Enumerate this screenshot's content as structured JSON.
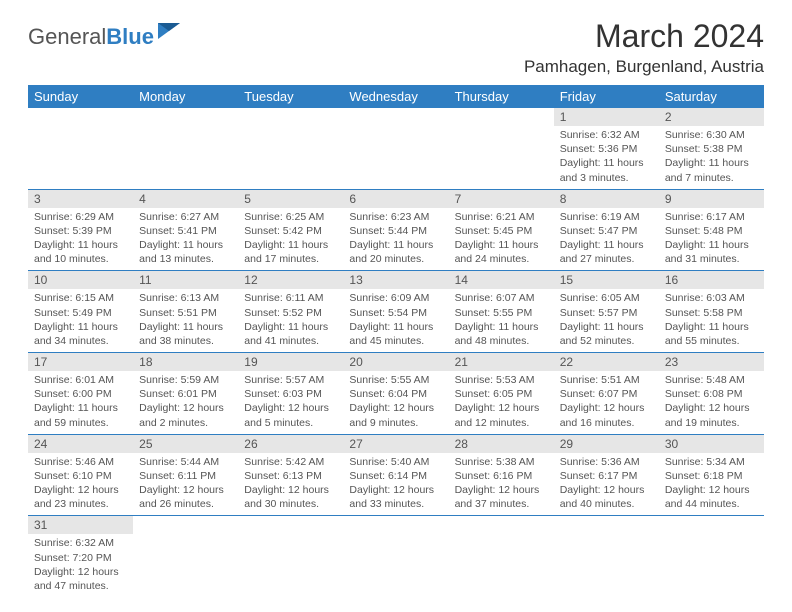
{
  "logo": {
    "text1": "General",
    "text2": "Blue"
  },
  "title": "March 2024",
  "location": "Pamhagen, Burgenland, Austria",
  "colors": {
    "header_bg": "#2f7ec2",
    "header_text": "#ffffff",
    "daynum_bg": "#e6e6e6",
    "body_text": "#555555",
    "rule": "#2f7ec2",
    "page_bg": "#ffffff"
  },
  "typography": {
    "title_fontsize": 32,
    "location_fontsize": 17,
    "weekday_fontsize": 13,
    "daynum_fontsize": 12,
    "body_fontsize": 10.5
  },
  "weekdays": [
    "Sunday",
    "Monday",
    "Tuesday",
    "Wednesday",
    "Thursday",
    "Friday",
    "Saturday"
  ],
  "weeks": [
    [
      null,
      null,
      null,
      null,
      null,
      {
        "n": "1",
        "sr": "Sunrise: 6:32 AM",
        "ss": "Sunset: 5:36 PM",
        "d1": "Daylight: 11 hours",
        "d2": "and 3 minutes."
      },
      {
        "n": "2",
        "sr": "Sunrise: 6:30 AM",
        "ss": "Sunset: 5:38 PM",
        "d1": "Daylight: 11 hours",
        "d2": "and 7 minutes."
      }
    ],
    [
      {
        "n": "3",
        "sr": "Sunrise: 6:29 AM",
        "ss": "Sunset: 5:39 PM",
        "d1": "Daylight: 11 hours",
        "d2": "and 10 minutes."
      },
      {
        "n": "4",
        "sr": "Sunrise: 6:27 AM",
        "ss": "Sunset: 5:41 PM",
        "d1": "Daylight: 11 hours",
        "d2": "and 13 minutes."
      },
      {
        "n": "5",
        "sr": "Sunrise: 6:25 AM",
        "ss": "Sunset: 5:42 PM",
        "d1": "Daylight: 11 hours",
        "d2": "and 17 minutes."
      },
      {
        "n": "6",
        "sr": "Sunrise: 6:23 AM",
        "ss": "Sunset: 5:44 PM",
        "d1": "Daylight: 11 hours",
        "d2": "and 20 minutes."
      },
      {
        "n": "7",
        "sr": "Sunrise: 6:21 AM",
        "ss": "Sunset: 5:45 PM",
        "d1": "Daylight: 11 hours",
        "d2": "and 24 minutes."
      },
      {
        "n": "8",
        "sr": "Sunrise: 6:19 AM",
        "ss": "Sunset: 5:47 PM",
        "d1": "Daylight: 11 hours",
        "d2": "and 27 minutes."
      },
      {
        "n": "9",
        "sr": "Sunrise: 6:17 AM",
        "ss": "Sunset: 5:48 PM",
        "d1": "Daylight: 11 hours",
        "d2": "and 31 minutes."
      }
    ],
    [
      {
        "n": "10",
        "sr": "Sunrise: 6:15 AM",
        "ss": "Sunset: 5:49 PM",
        "d1": "Daylight: 11 hours",
        "d2": "and 34 minutes."
      },
      {
        "n": "11",
        "sr": "Sunrise: 6:13 AM",
        "ss": "Sunset: 5:51 PM",
        "d1": "Daylight: 11 hours",
        "d2": "and 38 minutes."
      },
      {
        "n": "12",
        "sr": "Sunrise: 6:11 AM",
        "ss": "Sunset: 5:52 PM",
        "d1": "Daylight: 11 hours",
        "d2": "and 41 minutes."
      },
      {
        "n": "13",
        "sr": "Sunrise: 6:09 AM",
        "ss": "Sunset: 5:54 PM",
        "d1": "Daylight: 11 hours",
        "d2": "and 45 minutes."
      },
      {
        "n": "14",
        "sr": "Sunrise: 6:07 AM",
        "ss": "Sunset: 5:55 PM",
        "d1": "Daylight: 11 hours",
        "d2": "and 48 minutes."
      },
      {
        "n": "15",
        "sr": "Sunrise: 6:05 AM",
        "ss": "Sunset: 5:57 PM",
        "d1": "Daylight: 11 hours",
        "d2": "and 52 minutes."
      },
      {
        "n": "16",
        "sr": "Sunrise: 6:03 AM",
        "ss": "Sunset: 5:58 PM",
        "d1": "Daylight: 11 hours",
        "d2": "and 55 minutes."
      }
    ],
    [
      {
        "n": "17",
        "sr": "Sunrise: 6:01 AM",
        "ss": "Sunset: 6:00 PM",
        "d1": "Daylight: 11 hours",
        "d2": "and 59 minutes."
      },
      {
        "n": "18",
        "sr": "Sunrise: 5:59 AM",
        "ss": "Sunset: 6:01 PM",
        "d1": "Daylight: 12 hours",
        "d2": "and 2 minutes."
      },
      {
        "n": "19",
        "sr": "Sunrise: 5:57 AM",
        "ss": "Sunset: 6:03 PM",
        "d1": "Daylight: 12 hours",
        "d2": "and 5 minutes."
      },
      {
        "n": "20",
        "sr": "Sunrise: 5:55 AM",
        "ss": "Sunset: 6:04 PM",
        "d1": "Daylight: 12 hours",
        "d2": "and 9 minutes."
      },
      {
        "n": "21",
        "sr": "Sunrise: 5:53 AM",
        "ss": "Sunset: 6:05 PM",
        "d1": "Daylight: 12 hours",
        "d2": "and 12 minutes."
      },
      {
        "n": "22",
        "sr": "Sunrise: 5:51 AM",
        "ss": "Sunset: 6:07 PM",
        "d1": "Daylight: 12 hours",
        "d2": "and 16 minutes."
      },
      {
        "n": "23",
        "sr": "Sunrise: 5:48 AM",
        "ss": "Sunset: 6:08 PM",
        "d1": "Daylight: 12 hours",
        "d2": "and 19 minutes."
      }
    ],
    [
      {
        "n": "24",
        "sr": "Sunrise: 5:46 AM",
        "ss": "Sunset: 6:10 PM",
        "d1": "Daylight: 12 hours",
        "d2": "and 23 minutes."
      },
      {
        "n": "25",
        "sr": "Sunrise: 5:44 AM",
        "ss": "Sunset: 6:11 PM",
        "d1": "Daylight: 12 hours",
        "d2": "and 26 minutes."
      },
      {
        "n": "26",
        "sr": "Sunrise: 5:42 AM",
        "ss": "Sunset: 6:13 PM",
        "d1": "Daylight: 12 hours",
        "d2": "and 30 minutes."
      },
      {
        "n": "27",
        "sr": "Sunrise: 5:40 AM",
        "ss": "Sunset: 6:14 PM",
        "d1": "Daylight: 12 hours",
        "d2": "and 33 minutes."
      },
      {
        "n": "28",
        "sr": "Sunrise: 5:38 AM",
        "ss": "Sunset: 6:16 PM",
        "d1": "Daylight: 12 hours",
        "d2": "and 37 minutes."
      },
      {
        "n": "29",
        "sr": "Sunrise: 5:36 AM",
        "ss": "Sunset: 6:17 PM",
        "d1": "Daylight: 12 hours",
        "d2": "and 40 minutes."
      },
      {
        "n": "30",
        "sr": "Sunrise: 5:34 AM",
        "ss": "Sunset: 6:18 PM",
        "d1": "Daylight: 12 hours",
        "d2": "and 44 minutes."
      }
    ],
    [
      {
        "n": "31",
        "sr": "Sunrise: 6:32 AM",
        "ss": "Sunset: 7:20 PM",
        "d1": "Daylight: 12 hours",
        "d2": "and 47 minutes."
      },
      null,
      null,
      null,
      null,
      null,
      null
    ]
  ]
}
